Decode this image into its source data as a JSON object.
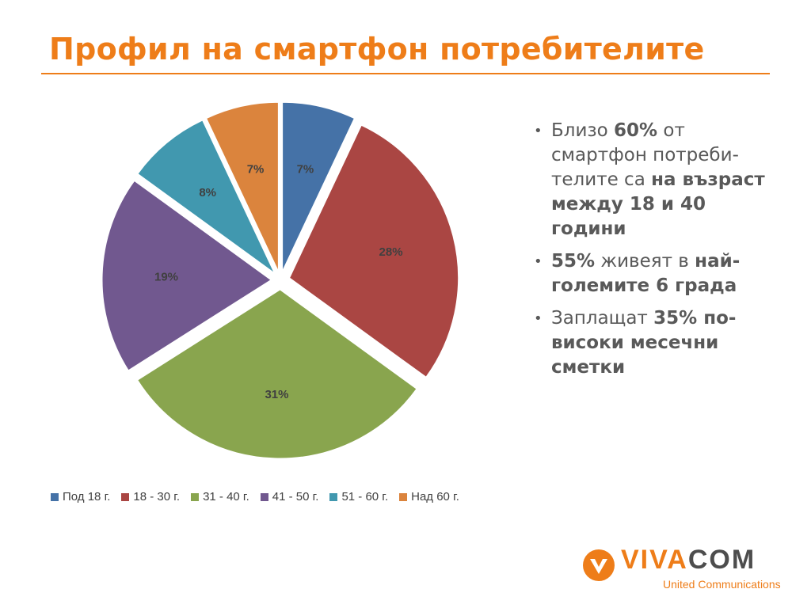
{
  "title": "Профил на смартфон потребителите",
  "chart_data": {
    "type": "pie",
    "categories": [
      "Под 18 г.",
      "18 - 30 г.",
      "31 - 40 г.",
      "41 - 50 г.",
      "51 - 60 г.",
      "Над 60 г."
    ],
    "values": [
      7,
      28,
      31,
      19,
      8,
      7
    ],
    "data_labels": [
      "7%",
      "28%",
      "31%",
      "19%",
      "8%",
      "7%"
    ],
    "colors": [
      "#4572a7",
      "#aa4643",
      "#89a54e",
      "#71588f",
      "#4198af",
      "#db843d"
    ],
    "legend_position": "bottom",
    "exploded": true
  },
  "bullets": [
    [
      {
        "text": "Близо ",
        "bold": false
      },
      {
        "text": "60%",
        "bold": true
      },
      {
        "text": " от смартфон потреби-телите са ",
        "bold": false
      },
      {
        "text": "на възраст между 18 и 40 години",
        "bold": true
      }
    ],
    [
      {
        "text": "55%",
        "bold": true
      },
      {
        "text": " живеят в ",
        "bold": false
      },
      {
        "text": "най-големите 6 града",
        "bold": true
      }
    ],
    [
      {
        "text": "Заплащат ",
        "bold": false
      },
      {
        "text": "35% по-високи месечни сметки",
        "bold": true
      }
    ]
  ],
  "logo": {
    "brand_a": "VIVA",
    "brand_b": "COM",
    "tagline": "United Communications"
  }
}
